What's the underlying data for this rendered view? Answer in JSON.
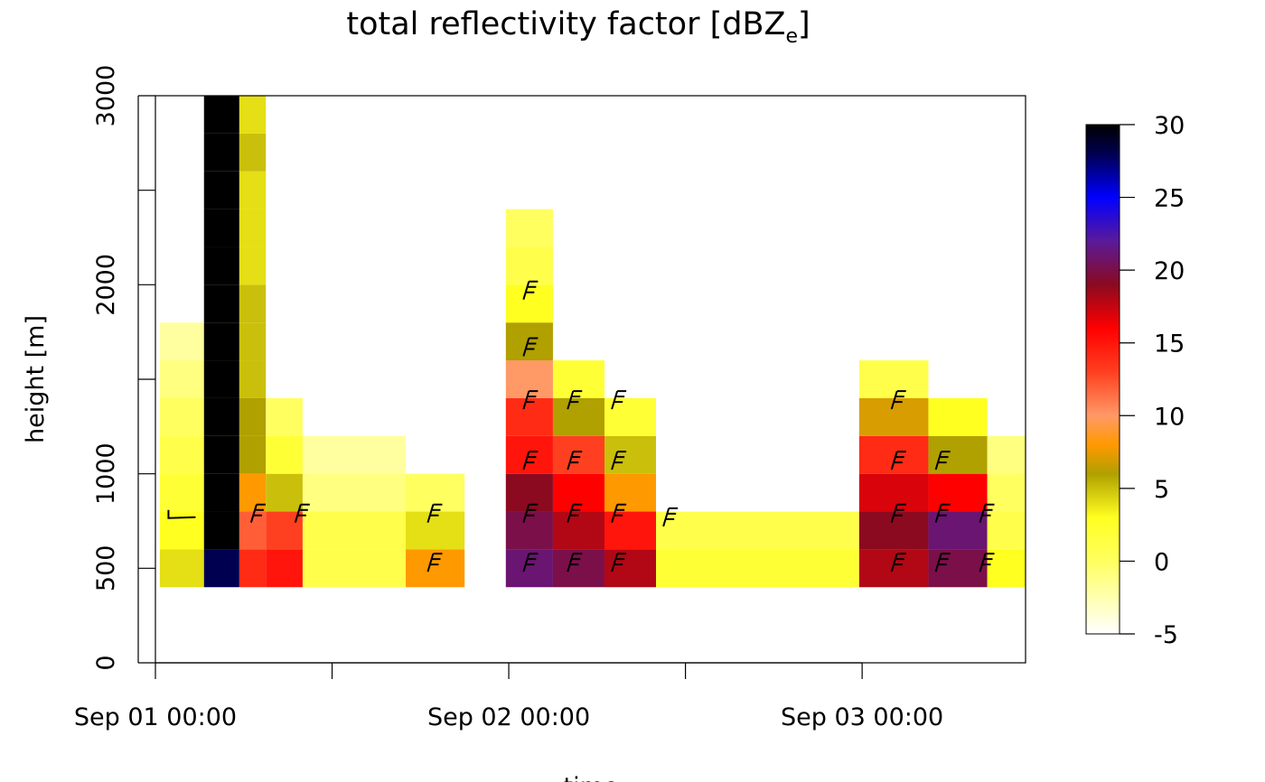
{
  "chart_data": {
    "type": "heatmap",
    "title": "total reflectivity factor [dBZ",
    "title_subscript": "e",
    "title_suffix": "]",
    "xlabel": "time",
    "ylabel": "height [m]",
    "x_tick_labels": [
      "Sep 01 00:00",
      "Sep 02 00:00",
      "Sep 03 00:00"
    ],
    "x_ticks_hours": [
      0,
      12,
      24,
      36,
      48
    ],
    "xlim_hours": [
      0,
      59.1
    ],
    "y_ticks": [
      0,
      500,
      1000,
      1500,
      2000,
      2500,
      3000
    ],
    "y_tick_labels": [
      "0",
      "500",
      "1000",
      "",
      "2000",
      "",
      "3000"
    ],
    "ylim": [
      0,
      3000
    ],
    "colorbar": {
      "range": [
        -5,
        30
      ],
      "ticks": [
        30,
        25,
        20,
        15,
        10,
        5,
        0,
        -5
      ],
      "stops": [
        {
          "v": -5,
          "c": "#ffffff"
        },
        {
          "v": 0,
          "c": "#ffff60"
        },
        {
          "v": 3,
          "c": "#ffff20"
        },
        {
          "v": 6,
          "c": "#b0a000"
        },
        {
          "v": 8,
          "c": "#ff9900"
        },
        {
          "v": 10,
          "c": "#ff9966"
        },
        {
          "v": 13,
          "c": "#ff4020"
        },
        {
          "v": 16,
          "c": "#ff0000"
        },
        {
          "v": 19,
          "c": "#8b0a20"
        },
        {
          "v": 22,
          "c": "#5a1a9a"
        },
        {
          "v": 25,
          "c": "#0000ff"
        },
        {
          "v": 28,
          "c": "#000050"
        },
        {
          "v": 30,
          "c": "#000000"
        }
      ]
    },
    "height_bins_m": [
      400,
      600,
      800,
      1000,
      1200,
      1400,
      1600,
      1800,
      2000,
      2200,
      2400,
      2600,
      2800,
      3000
    ],
    "blocks": [
      {
        "t0": 0.3,
        "t1": 3.3,
        "bins": [
          [
            0,
            4
          ],
          [
            1,
            3
          ],
          [
            2,
            2
          ],
          [
            3,
            1
          ],
          [
            4,
            0
          ],
          [
            5,
            -1
          ],
          [
            6,
            -2
          ]
        ]
      },
      {
        "t0": 3.3,
        "t1": 5.7,
        "bins": [
          [
            0,
            28
          ],
          [
            1,
            30
          ],
          [
            2,
            30
          ],
          [
            3,
            30
          ],
          [
            4,
            30
          ],
          [
            5,
            30
          ],
          [
            6,
            30
          ],
          [
            7,
            30
          ],
          [
            8,
            30
          ],
          [
            9,
            30
          ],
          [
            10,
            30
          ],
          [
            11,
            30
          ],
          [
            12,
            30
          ]
        ]
      },
      {
        "t0": 5.7,
        "t1": 7.5,
        "bins": [
          [
            0,
            14
          ],
          [
            1,
            12
          ],
          [
            2,
            8
          ],
          [
            3,
            6
          ],
          [
            4,
            6
          ],
          [
            5,
            5
          ],
          [
            6,
            5
          ],
          [
            7,
            5
          ],
          [
            8,
            4
          ],
          [
            9,
            4
          ],
          [
            10,
            4
          ],
          [
            11,
            5
          ],
          [
            12,
            4
          ]
        ]
      },
      {
        "t0": 7.5,
        "t1": 10.0,
        "bins": [
          [
            0,
            15
          ],
          [
            1,
            13
          ],
          [
            2,
            5
          ],
          [
            3,
            2
          ],
          [
            4,
            0
          ]
        ]
      },
      {
        "t0": 10.0,
        "t1": 17.0,
        "bins": [
          [
            0,
            1
          ],
          [
            1,
            1
          ],
          [
            2,
            -1
          ],
          [
            3,
            -2
          ]
        ]
      },
      {
        "t0": 17.0,
        "t1": 21.0,
        "bins": [
          [
            0,
            8
          ],
          [
            1,
            4
          ],
          [
            2,
            0
          ]
        ]
      },
      {
        "t0": 23.8,
        "t1": 27.0,
        "bins": [
          [
            0,
            21
          ],
          [
            1,
            20
          ],
          [
            2,
            19
          ],
          [
            3,
            15
          ],
          [
            4,
            14
          ],
          [
            5,
            10
          ],
          [
            6,
            6
          ],
          [
            7,
            3
          ],
          [
            8,
            1
          ],
          [
            9,
            0
          ]
        ]
      },
      {
        "t0": 27.0,
        "t1": 30.5,
        "bins": [
          [
            0,
            20
          ],
          [
            1,
            18
          ],
          [
            2,
            16
          ],
          [
            3,
            13
          ],
          [
            4,
            6
          ],
          [
            5,
            2
          ]
        ]
      },
      {
        "t0": 30.5,
        "t1": 34.0,
        "bins": [
          [
            0,
            18
          ],
          [
            1,
            15
          ],
          [
            2,
            8
          ],
          [
            3,
            5
          ],
          [
            4,
            2
          ]
        ]
      },
      {
        "t0": 34.0,
        "t1": 47.8,
        "bins": [
          [
            0,
            2
          ],
          [
            1,
            1
          ]
        ]
      },
      {
        "t0": 47.8,
        "t1": 52.5,
        "bins": [
          [
            0,
            18
          ],
          [
            1,
            19
          ],
          [
            2,
            17
          ],
          [
            3,
            14
          ],
          [
            4,
            7
          ],
          [
            5,
            1
          ]
        ]
      },
      {
        "t0": 52.5,
        "t1": 56.5,
        "bins": [
          [
            0,
            20
          ],
          [
            1,
            21
          ],
          [
            2,
            16
          ],
          [
            3,
            6
          ],
          [
            4,
            3
          ]
        ]
      },
      {
        "t0": 56.5,
        "t1": 59.1,
        "bins": [
          [
            0,
            3
          ],
          [
            1,
            1
          ],
          [
            2,
            0
          ],
          [
            3,
            -1
          ]
        ]
      }
    ],
    "wind_barbs": [
      {
        "t": 1.5,
        "h": 780,
        "type": "calm-line"
      },
      {
        "t": 6.5,
        "h": 780
      },
      {
        "t": 9.5,
        "h": 780
      },
      {
        "t": 18.5,
        "h": 780
      },
      {
        "t": 18.5,
        "h": 520
      },
      {
        "t": 25.0,
        "h": 1960
      },
      {
        "t": 25.0,
        "h": 1660
      },
      {
        "t": 25.0,
        "h": 1380
      },
      {
        "t": 25.0,
        "h": 1060
      },
      {
        "t": 25.0,
        "h": 780
      },
      {
        "t": 25.0,
        "h": 520
      },
      {
        "t": 28.0,
        "h": 1380
      },
      {
        "t": 28.0,
        "h": 1060
      },
      {
        "t": 28.0,
        "h": 780
      },
      {
        "t": 28.0,
        "h": 520
      },
      {
        "t": 31.0,
        "h": 1380
      },
      {
        "t": 31.0,
        "h": 1060
      },
      {
        "t": 31.0,
        "h": 780
      },
      {
        "t": 31.0,
        "h": 520
      },
      {
        "t": 34.5,
        "h": 760
      },
      {
        "t": 50.0,
        "h": 1380
      },
      {
        "t": 50.0,
        "h": 1060
      },
      {
        "t": 50.0,
        "h": 780
      },
      {
        "t": 50.0,
        "h": 520
      },
      {
        "t": 53.0,
        "h": 1060
      },
      {
        "t": 53.0,
        "h": 780
      },
      {
        "t": 53.0,
        "h": 520
      },
      {
        "t": 56.0,
        "h": 780
      },
      {
        "t": 56.0,
        "h": 520
      }
    ]
  }
}
